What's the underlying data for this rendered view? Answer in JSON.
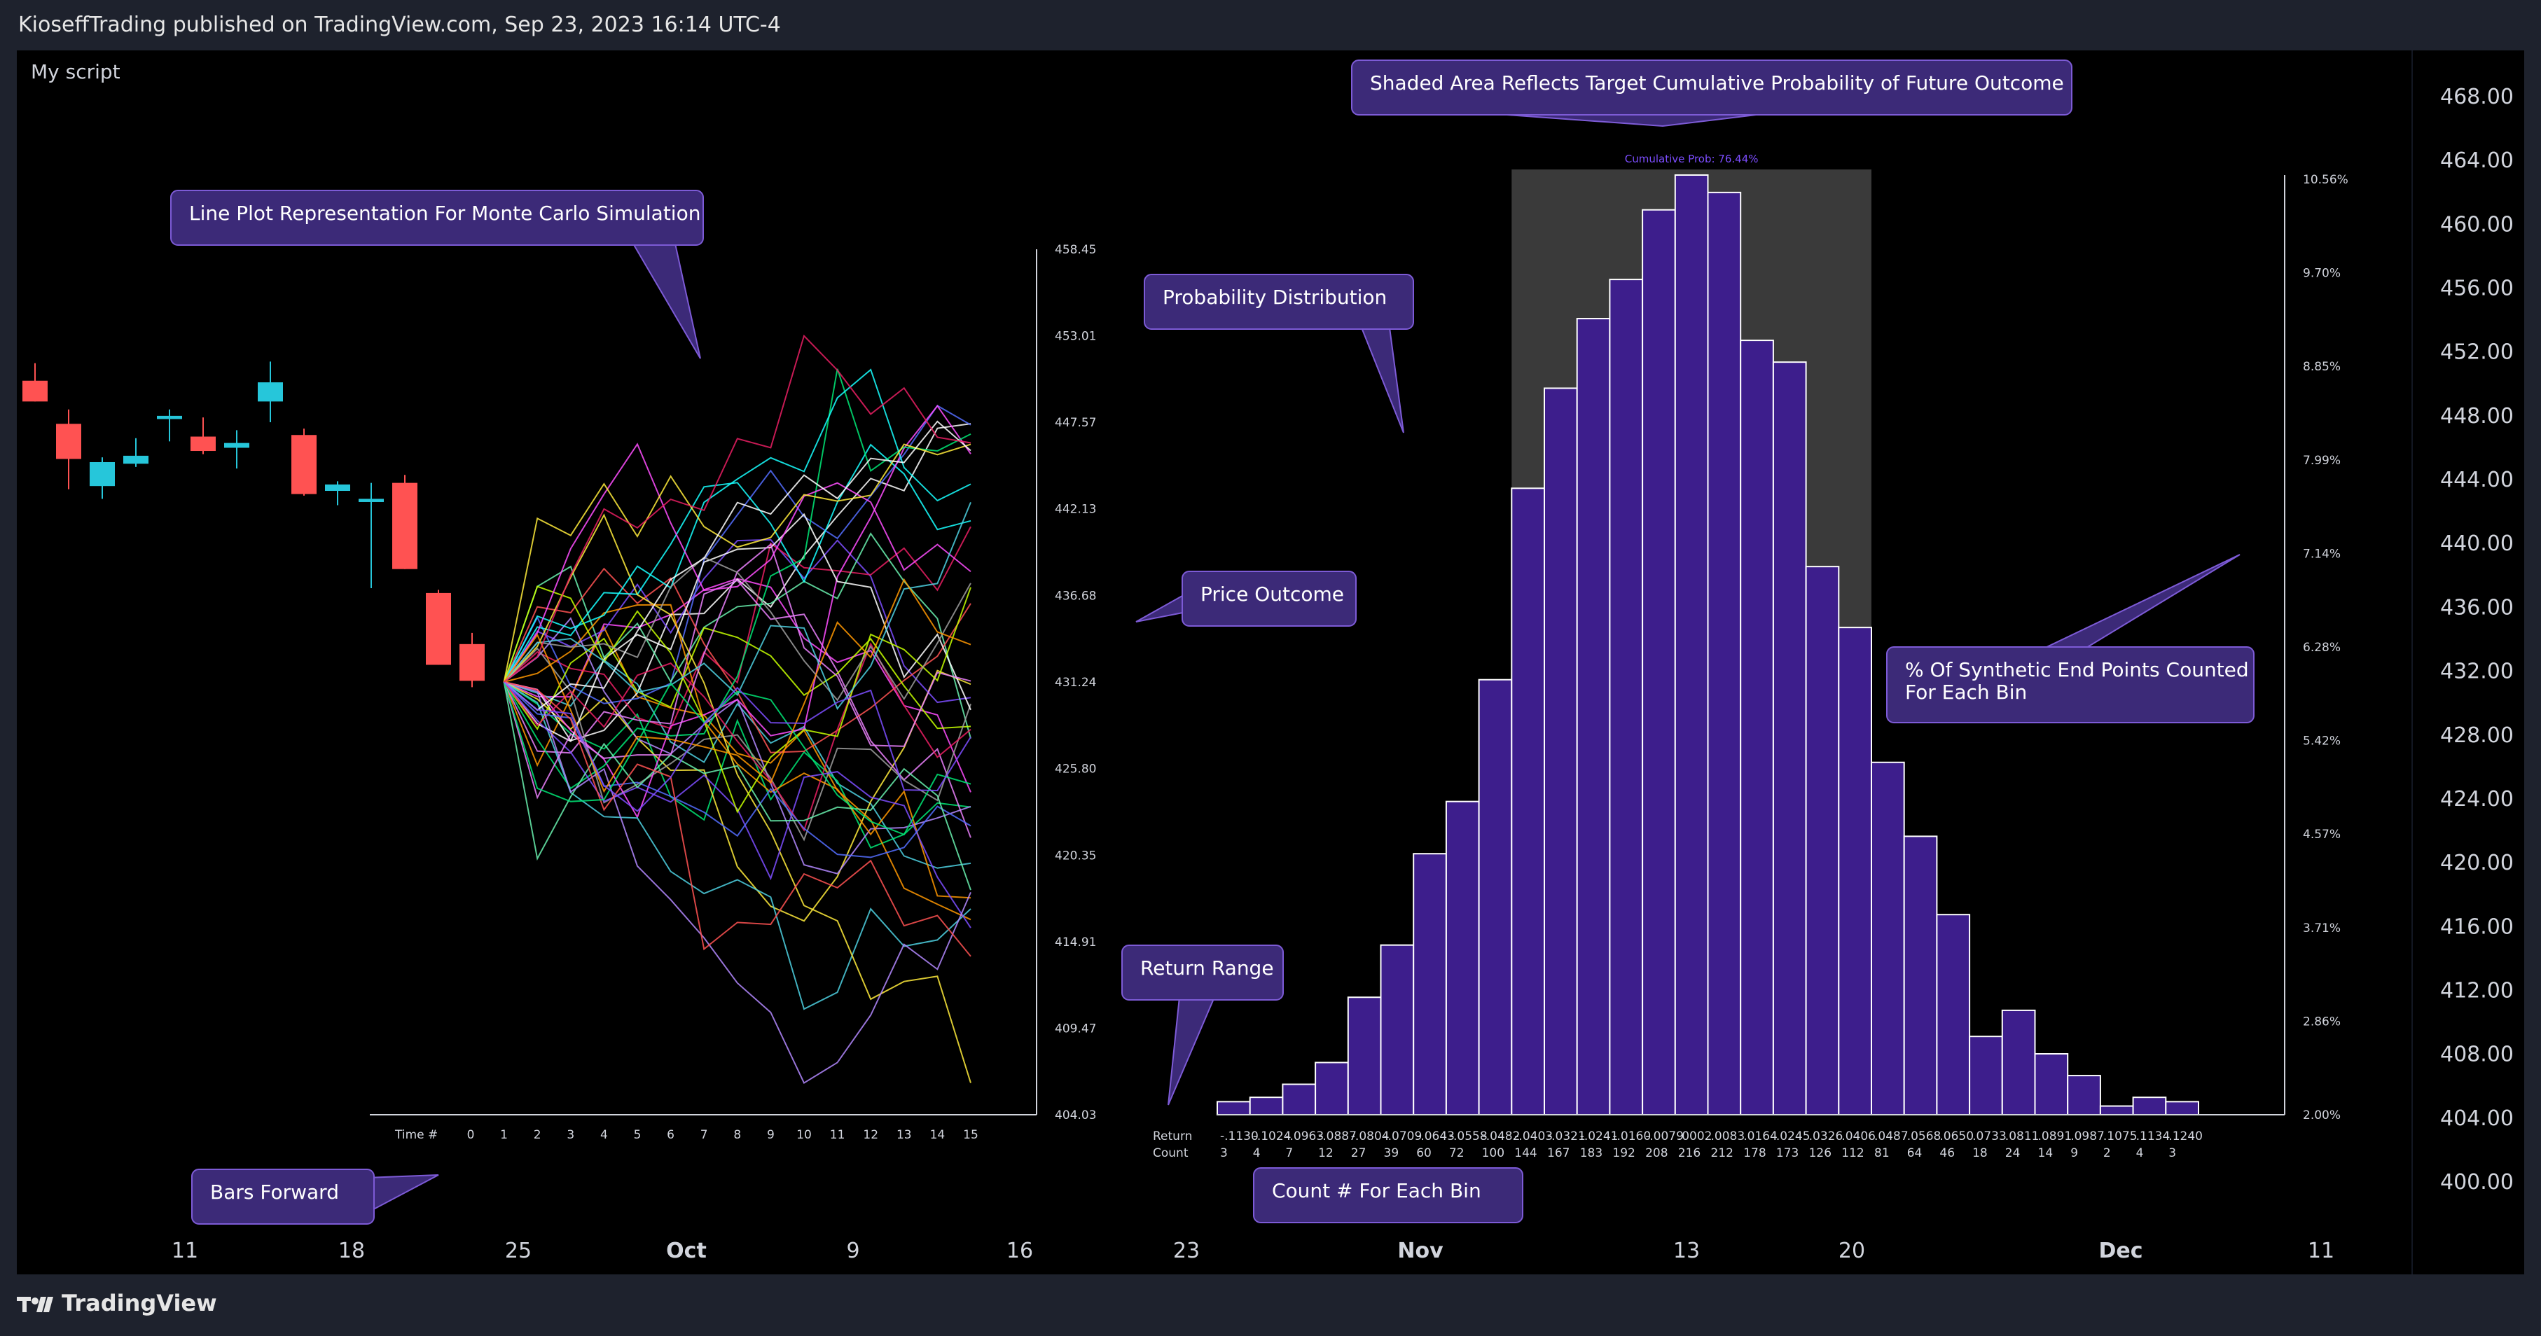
{
  "header": {
    "published": "KioseffTrading published on TradingView.com, Sep 23, 2023 16:14 UTC-4"
  },
  "footer": {
    "brand": "TradingView"
  },
  "indicator_label": "My script",
  "colors": {
    "bull": "#26c6da",
    "bear": "#ff5252",
    "bar_fill": "#3d1e8c",
    "bar_stroke": "#ffffff",
    "shade": "#3a3a3a",
    "callout_bg": "#3c2a78",
    "callout_border": "#7d5bd6",
    "axis": "#9598a1",
    "cum_prob": "#7c4dff"
  },
  "callouts": {
    "shaded": "Shaded Area Reflects Target Cumulative Probability of Future Outcome",
    "line_plot": "Line Plot Representation For Monte Carlo Simulation",
    "prob_dist": "Probability Distribution",
    "price_outcome": "Price Outcome",
    "pct_synthetic": [
      "% Of Synthetic End Points Counted",
      "For Each Bin"
    ],
    "return_range": "Return Range",
    "bars_forward": "Bars Forward",
    "count_each_bin": "Count # For Each Bin"
  },
  "cumulative_prob_label": "Cumulative Prob: 76.44%",
  "chart_data": [
    {
      "type": "candlestick",
      "time_axis": [
        "11",
        "18",
        "25",
        "Oct",
        "9",
        "16",
        "23",
        "Nov",
        "13",
        "20",
        "Dec",
        "11"
      ],
      "price_axis": {
        "labels": [
          "468.00",
          "464.00",
          "460.00",
          "456.00",
          "452.00",
          "448.00",
          "444.00",
          "440.00",
          "436.00",
          "432.00",
          "428.00",
          "424.00",
          "420.00",
          "416.00",
          "412.00",
          "408.00",
          "404.00",
          "400.00"
        ],
        "ylim": [
          400,
          468
        ]
      },
      "candles": [
        {
          "o": 450.2,
          "h": 451.3,
          "l": 448.9,
          "c": 448.9
        },
        {
          "o": 447.5,
          "h": 448.4,
          "l": 443.4,
          "c": 445.3
        },
        {
          "o": 443.6,
          "h": 445.4,
          "l": 442.8,
          "c": 445.1
        },
        {
          "o": 445.0,
          "h": 446.6,
          "l": 444.8,
          "c": 445.5
        },
        {
          "o": 447.8,
          "h": 448.4,
          "l": 446.4,
          "c": 448.0
        },
        {
          "o": 446.7,
          "h": 447.9,
          "l": 445.6,
          "c": 445.8
        },
        {
          "o": 446.0,
          "h": 447.1,
          "l": 444.7,
          "c": 446.3
        },
        {
          "o": 448.9,
          "h": 451.4,
          "l": 447.6,
          "c": 450.1
        },
        {
          "o": 446.8,
          "h": 447.2,
          "l": 443.0,
          "c": 443.1
        },
        {
          "o": 443.3,
          "h": 443.9,
          "l": 442.4,
          "c": 443.7
        },
        {
          "o": 442.6,
          "h": 443.8,
          "l": 437.2,
          "c": 442.8
        },
        {
          "o": 443.8,
          "h": 444.3,
          "l": 438.4,
          "c": 438.4
        },
        {
          "o": 436.9,
          "h": 437.1,
          "l": 432.4,
          "c": 432.4
        },
        {
          "o": 433.7,
          "h": 434.4,
          "l": 431.0,
          "c": 431.4
        }
      ]
    },
    {
      "type": "line",
      "title": "Line Plot Representation For Monte Carlo Simulation",
      "x_label": "Time #",
      "x": [
        0,
        1,
        2,
        3,
        4,
        5,
        6,
        7,
        8,
        9,
        10,
        11,
        12,
        13,
        14,
        15
      ],
      "y_axis_labels": [
        "458.45",
        "453.01",
        "447.57",
        "442.13",
        "436.68",
        "431.24",
        "425.80",
        "420.35",
        "414.91",
        "409.47",
        "404.03"
      ],
      "ylim": [
        404.03,
        458.45
      ],
      "start_value": 431.24,
      "num_paths": 40,
      "path_colors": [
        "#ff4dff",
        "#4dd0e1",
        "#00e676",
        "#ffeb3b",
        "#ff9800",
        "#ffffff",
        "#7c4dff",
        "#e91e63",
        "#536dfe",
        "#69f0ae",
        "#b388ff",
        "#ea80fc",
        "#ff5252",
        "#18ffff",
        "#c6ff00",
        "#9e9e9e"
      ]
    },
    {
      "type": "bar",
      "title": "Probability Distribution",
      "return_row_label": "Return",
      "count_row_label": "Count",
      "categories": [
        "-.1130",
        "-.1024",
        "-.0963",
        "-.0887",
        "-.0804",
        "-.0709",
        "-.0643",
        "-.0558",
        "-.0482",
        "-.0403",
        "-.0321",
        "-.0241",
        "-.0160",
        "-.0079",
        ".0002",
        ".0083",
        ".0164",
        ".0245",
        ".0326",
        ".0406",
        ".0487",
        ".0568",
        ".0650",
        ".0733",
        ".0811",
        ".0891",
        ".0987",
        ".1075",
        ".1134",
        ".1240"
      ],
      "counts": [
        3,
        4,
        7,
        12,
        27,
        39,
        60,
        72,
        100,
        144,
        167,
        183,
        192,
        208,
        216,
        212,
        178,
        173,
        126,
        112,
        81,
        64,
        46,
        18,
        24,
        14,
        9,
        2,
        4,
        3
      ],
      "y_axis_labels": [
        "10.56%",
        "9.70%",
        "8.85%",
        "7.99%",
        "7.14%",
        "6.28%",
        "5.42%",
        "4.57%",
        "3.71%",
        "2.86%",
        "2.00%"
      ],
      "shaded_bins": [
        9,
        19
      ],
      "cumulative_prob": 76.44
    }
  ]
}
